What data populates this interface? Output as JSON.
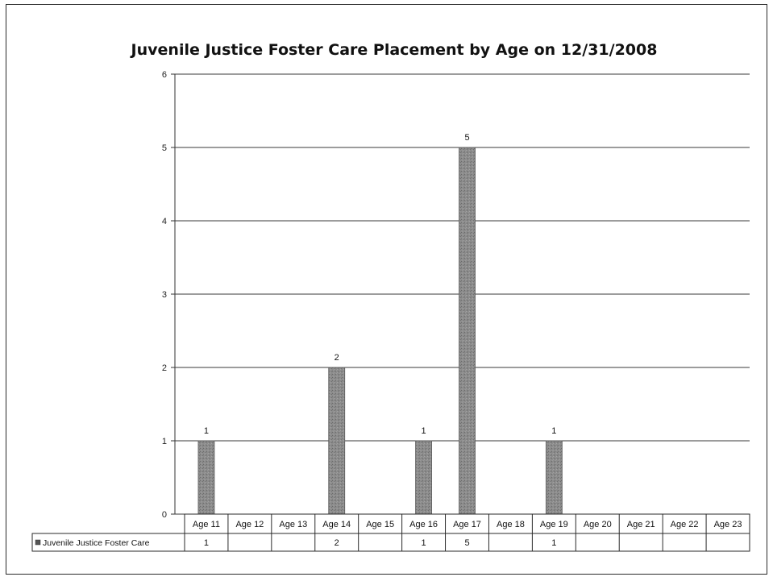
{
  "chart_data": {
    "type": "bar",
    "title": "Juvenile Justice Foster Care Placement by Age on 12/31/2008",
    "categories": [
      "Age 11",
      "Age 12",
      "Age 13",
      "Age 14",
      "Age 15",
      "Age 16",
      "Age 17",
      "Age 18",
      "Age 19",
      "Age 20",
      "Age 21",
      "Age 22",
      "Age 23"
    ],
    "series": [
      {
        "name": "Juvenile Justice Foster Care",
        "values": [
          1,
          null,
          null,
          2,
          null,
          1,
          5,
          null,
          1,
          null,
          null,
          null,
          null
        ],
        "color": "#8a8a8a"
      }
    ],
    "ylim": [
      0,
      6
    ],
    "yticks": [
      0,
      1,
      2,
      3,
      4,
      5,
      6
    ],
    "grid": true,
    "legend": "data-table-left",
    "data_labels": true,
    "data_table": true
  }
}
